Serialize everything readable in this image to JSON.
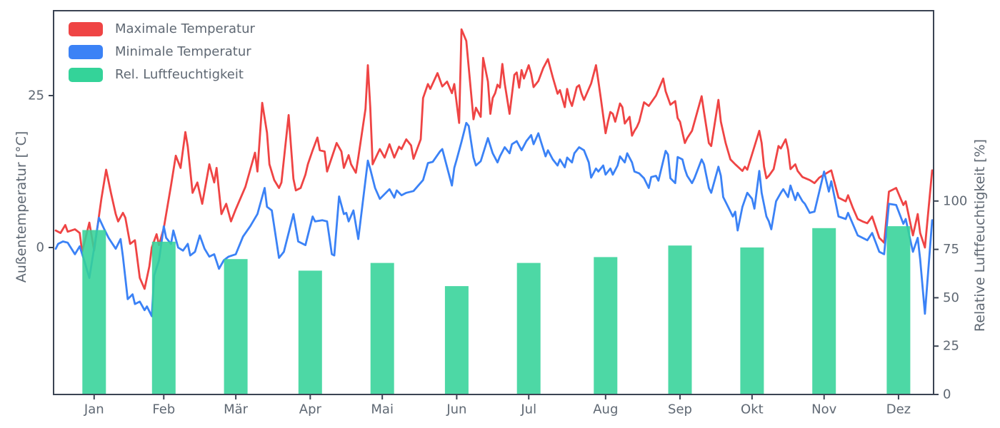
{
  "figure": {
    "background": "#ffffff",
    "plot_border_color": "#3b4453",
    "text_color": "#5f6873"
  },
  "legend": {
    "items": [
      {
        "label": "Maximale Temperatur",
        "color": "#ef4444"
      },
      {
        "label": "Minimale Temperatur",
        "color": "#3b82f6"
      },
      {
        "label": "Rel. Luftfeuchtigkeit",
        "color": "#34d399"
      }
    ]
  },
  "chart_data": {
    "type": "mixed",
    "x_unit": "day_of_year",
    "x_range": [
      0,
      365
    ],
    "grid": false,
    "legend_position": "upper-left",
    "left_axis": {
      "label": "Außentemperatur [°C]",
      "ticks": [
        0,
        25
      ],
      "range_approx": [
        -24,
        39
      ]
    },
    "right_axis": {
      "label": "Relative Luftfeuchtigkeit [%]",
      "ticks": [
        0,
        25,
        50,
        75,
        100
      ]
    },
    "month_labels": [
      "Jan",
      "Feb",
      "Mär",
      "Apr",
      "Mai",
      "Jun",
      "Jul",
      "Aug",
      "Sep",
      "Okt",
      "Nov",
      "Dez"
    ],
    "month_tick_days": [
      16,
      45,
      75,
      106,
      136,
      167,
      197,
      229,
      260,
      290,
      320,
      351
    ],
    "series": [
      {
        "name": "Maximale Temperatur",
        "type": "line",
        "axis": "left",
        "color": "#ef4444",
        "days": [
          0,
          2,
          4,
          5,
          8,
          10,
          11,
          14,
          16,
          19,
          21,
          23,
          25,
          26,
          28,
          29,
          31,
          33,
          35,
          37,
          39,
          40,
          42,
          43,
          45,
          48,
          50,
          52,
          54,
          55,
          57,
          59,
          61,
          64,
          66,
          67,
          69,
          71,
          73,
          75,
          79,
          83,
          84,
          86,
          88,
          89,
          91,
          93,
          94,
          97,
          99,
          100,
          102,
          104,
          105,
          107,
          109,
          110,
          112,
          113,
          117,
          119,
          120,
          122,
          123,
          125,
          126,
          129,
          130,
          131,
          132,
          134,
          135,
          137,
          139,
          141,
          143,
          144,
          146,
          148,
          149,
          152,
          153,
          155,
          156,
          159,
          161,
          163,
          165,
          166,
          168,
          169,
          171,
          174,
          175,
          177,
          178,
          180,
          181,
          182,
          183,
          184,
          185,
          186,
          187,
          189,
          191,
          192,
          193,
          194,
          195,
          197,
          198,
          199,
          201,
          203,
          205,
          207,
          209,
          210,
          212,
          213,
          214,
          215,
          217,
          218,
          219,
          220,
          223,
          225,
          226,
          227,
          229,
          230,
          231,
          232,
          233,
          235,
          236,
          237,
          239,
          240,
          241,
          242,
          243,
          245,
          247,
          250,
          253,
          254,
          256,
          258,
          259,
          260,
          262,
          263,
          265,
          269,
          270,
          272,
          273,
          276,
          277,
          279,
          281,
          283,
          286,
          287,
          288,
          293,
          294,
          295,
          296,
          297,
          299,
          301,
          302,
          304,
          305,
          306,
          308,
          309,
          311,
          314,
          316,
          318,
          320,
          323,
          326,
          329,
          330,
          332,
          334,
          336,
          338,
          340,
          343,
          345,
          347,
          350,
          353,
          354,
          357,
          359,
          360,
          362,
          365
        ],
        "values": [
          2.8,
          2.4,
          3.7,
          2.6,
          3.0,
          2.4,
          -0.7,
          4.1,
          -0.5,
          8.0,
          12.8,
          9.0,
          5.5,
          4.3,
          5.7,
          4.9,
          0.6,
          1.2,
          -5.0,
          -6.8,
          -3.1,
          0.0,
          2.2,
          0.4,
          3.2,
          10.2,
          15.1,
          13.1,
          19.0,
          16.6,
          9.0,
          10.7,
          7.2,
          13.7,
          10.7,
          13.1,
          5.5,
          7.2,
          4.3,
          6.3,
          10.0,
          15.6,
          12.5,
          23.8,
          18.9,
          13.7,
          11.1,
          9.8,
          10.7,
          21.8,
          11.3,
          9.4,
          9.8,
          12.0,
          13.7,
          16.0,
          18.1,
          16.0,
          15.8,
          12.5,
          17.2,
          15.8,
          13.1,
          15.2,
          13.7,
          12.3,
          14.8,
          22.8,
          30.0,
          23.0,
          13.7,
          15.4,
          16.2,
          14.8,
          17.0,
          14.8,
          16.6,
          16.2,
          17.8,
          16.8,
          14.6,
          17.8,
          24.6,
          26.9,
          26.1,
          28.7,
          26.5,
          27.3,
          25.4,
          26.9,
          20.5,
          35.9,
          34.0,
          21.1,
          23.0,
          21.5,
          31.2,
          27.3,
          22.0,
          24.6,
          25.4,
          26.8,
          26.3,
          30.2,
          27.0,
          22.0,
          28.4,
          28.8,
          26.3,
          29.2,
          27.8,
          30.0,
          28.6,
          26.4,
          27.4,
          29.5,
          31.0,
          28.0,
          25.3,
          25.9,
          23.1,
          26.1,
          24.3,
          23.3,
          26.4,
          26.7,
          25.3,
          24.3,
          27.0,
          30.0,
          27.4,
          24.6,
          18.8,
          20.7,
          22.3,
          22.0,
          20.7,
          23.7,
          23.1,
          20.4,
          21.5,
          18.4,
          19.2,
          19.8,
          20.7,
          23.9,
          23.3,
          25.0,
          27.8,
          25.7,
          23.5,
          24.1,
          21.3,
          20.7,
          17.2,
          18.0,
          19.2,
          24.9,
          22.3,
          17.2,
          16.7,
          24.3,
          20.7,
          17.2,
          14.5,
          13.7,
          12.6,
          13.3,
          12.8,
          19.2,
          17.2,
          13.3,
          11.4,
          11.8,
          12.9,
          16.7,
          16.3,
          17.8,
          16.1,
          12.9,
          13.7,
          12.6,
          11.6,
          11.1,
          10.6,
          11.5,
          12.0,
          12.7,
          8.2,
          7.6,
          8.6,
          6.5,
          4.7,
          4.3,
          4.0,
          5.1,
          1.6,
          0.8,
          9.2,
          9.8,
          7.0,
          7.6,
          2.0,
          5.5,
          2.4,
          0.0,
          12.7
        ]
      },
      {
        "name": "Minimale Temperatur",
        "type": "line",
        "axis": "left",
        "color": "#3b82f6",
        "days": [
          0,
          1,
          3,
          5,
          8,
          10,
          12,
          14,
          18,
          20,
          22,
          23,
          25,
          27,
          28,
          30,
          32,
          33,
          35,
          37,
          38,
          40,
          41,
          43,
          45,
          46,
          48,
          49,
          51,
          53,
          55,
          56,
          58,
          60,
          62,
          64,
          66,
          68,
          70,
          72,
          75,
          78,
          81,
          84,
          87,
          88,
          90,
          93,
          95,
          99,
          101,
          104,
          107,
          108,
          111,
          113,
          115,
          116,
          118,
          120,
          121,
          122,
          124,
          126,
          130,
          131,
          133,
          135,
          139,
          141,
          142,
          144,
          146,
          149,
          153,
          155,
          157,
          160,
          161,
          165,
          166,
          167,
          169,
          171,
          172,
          174,
          175,
          177,
          180,
          182,
          184,
          185,
          187,
          189,
          190,
          192,
          194,
          196,
          198,
          199,
          201,
          202,
          204,
          205,
          207,
          209,
          210,
          212,
          213,
          215,
          216,
          218,
          220,
          222,
          223,
          225,
          226,
          228,
          229,
          231,
          232,
          234,
          235,
          237,
          238,
          240,
          241,
          243,
          245,
          247,
          248,
          250,
          251,
          254,
          255,
          256,
          258,
          259,
          261,
          262,
          263,
          265,
          266,
          269,
          270,
          272,
          273,
          276,
          277,
          278,
          280,
          282,
          283,
          284,
          286,
          288,
          290,
          291,
          293,
          294,
          296,
          297,
          298,
          300,
          302,
          303,
          305,
          306,
          308,
          309,
          311,
          312,
          314,
          316,
          320,
          322,
          323,
          326,
          329,
          330,
          334,
          338,
          340,
          343,
          345,
          347,
          350,
          353,
          354,
          357,
          359,
          360,
          362,
          365
        ],
        "values": [
          -0.2,
          0.6,
          1.0,
          0.8,
          -1.1,
          0.2,
          -2.3,
          -5.0,
          4.9,
          3.2,
          1.6,
          1.0,
          -0.2,
          1.4,
          -1.5,
          -8.5,
          -7.7,
          -9.3,
          -8.9,
          -10.3,
          -9.7,
          -11.3,
          -4.6,
          -2.1,
          3.5,
          1.6,
          0.6,
          2.8,
          0.0,
          -0.5,
          0.6,
          -1.3,
          -0.7,
          2.0,
          -0.2,
          -1.5,
          -1.1,
          -3.5,
          -2.1,
          -1.5,
          -1.1,
          1.8,
          3.5,
          5.5,
          9.8,
          6.7,
          6.1,
          -1.7,
          -0.7,
          5.5,
          1.0,
          0.4,
          5.1,
          4.3,
          4.5,
          4.3,
          -1.1,
          -1.3,
          8.4,
          5.5,
          5.7,
          4.3,
          6.1,
          1.4,
          14.3,
          12.9,
          9.8,
          8.0,
          9.6,
          8.2,
          9.4,
          8.6,
          9.0,
          9.3,
          11.1,
          13.9,
          14.1,
          15.8,
          16.2,
          10.2,
          13.1,
          14.5,
          17.4,
          20.5,
          20.0,
          14.8,
          13.5,
          14.2,
          18.0,
          15.5,
          14.0,
          15.0,
          16.5,
          15.5,
          17.0,
          17.5,
          16.0,
          17.5,
          18.5,
          17.0,
          18.8,
          17.5,
          15.0,
          16.0,
          14.5,
          13.5,
          14.5,
          13.2,
          14.8,
          14.0,
          15.5,
          16.5,
          16.0,
          14.0,
          11.5,
          13.0,
          12.5,
          13.5,
          12.0,
          13.0,
          12.0,
          13.5,
          15.0,
          14.0,
          15.5,
          14.0,
          12.5,
          12.2,
          11.4,
          9.8,
          11.6,
          11.8,
          11.0,
          15.9,
          15.3,
          11.4,
          10.6,
          14.9,
          14.5,
          12.9,
          11.8,
          10.6,
          11.4,
          14.5,
          13.7,
          9.8,
          9.0,
          13.3,
          11.8,
          8.3,
          6.7,
          5.1,
          5.9,
          2.8,
          6.7,
          9.0,
          8.0,
          6.4,
          12.6,
          9.0,
          5.1,
          4.3,
          3.0,
          7.6,
          9.0,
          9.6,
          8.3,
          10.2,
          7.8,
          9.0,
          7.6,
          7.2,
          5.7,
          5.9,
          12.5,
          9.2,
          10.9,
          5.1,
          4.7,
          5.7,
          2.0,
          1.2,
          2.4,
          -0.7,
          -1.1,
          7.2,
          7.0,
          3.9,
          4.7,
          -0.7,
          1.6,
          -1.9,
          -10.9,
          4.5
        ]
      },
      {
        "name": "Rel. Luftfeuchtigkeit",
        "type": "bar",
        "axis": "right",
        "color": "#34d399",
        "categories": [
          "Jan",
          "Feb",
          "Mär",
          "Apr",
          "Mai",
          "Jun",
          "Jul",
          "Aug",
          "Sep",
          "Okt",
          "Nov",
          "Dez"
        ],
        "values": [
          85,
          79,
          70,
          64,
          68,
          56,
          68,
          71,
          77,
          76,
          86,
          87
        ]
      }
    ]
  }
}
